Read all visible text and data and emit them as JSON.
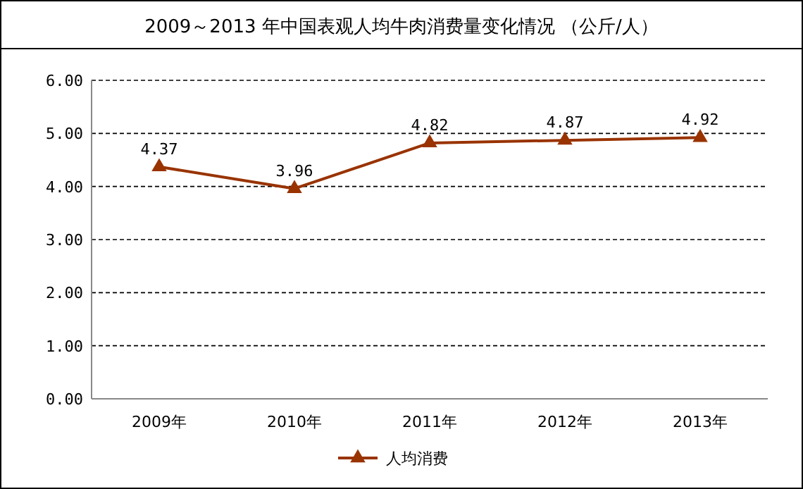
{
  "chart_data": {
    "type": "line",
    "title": "2009～2013 年中国表观人均牛肉消费量变化情况  （公斤/人）",
    "categories": [
      "2009年",
      "2010年",
      "2011年",
      "2012年",
      "2013年"
    ],
    "series": [
      {
        "name": "人均消费",
        "color": "#993300",
        "values": [
          4.37,
          3.96,
          4.82,
          4.87,
          4.92
        ]
      }
    ],
    "ylim": [
      0,
      6
    ],
    "yticks": [
      {
        "value": 0,
        "label": "0.00"
      },
      {
        "value": 1,
        "label": "1.00"
      },
      {
        "value": 2,
        "label": "2.00"
      },
      {
        "value": 3,
        "label": "3.00"
      },
      {
        "value": 4,
        "label": "4.00"
      },
      {
        "value": 5,
        "label": "5.00"
      },
      {
        "value": 6,
        "label": "6.00"
      }
    ],
    "grid": "y",
    "legend": "bottom",
    "marker": "triangle",
    "line_style": "solid",
    "data_labels": true
  }
}
